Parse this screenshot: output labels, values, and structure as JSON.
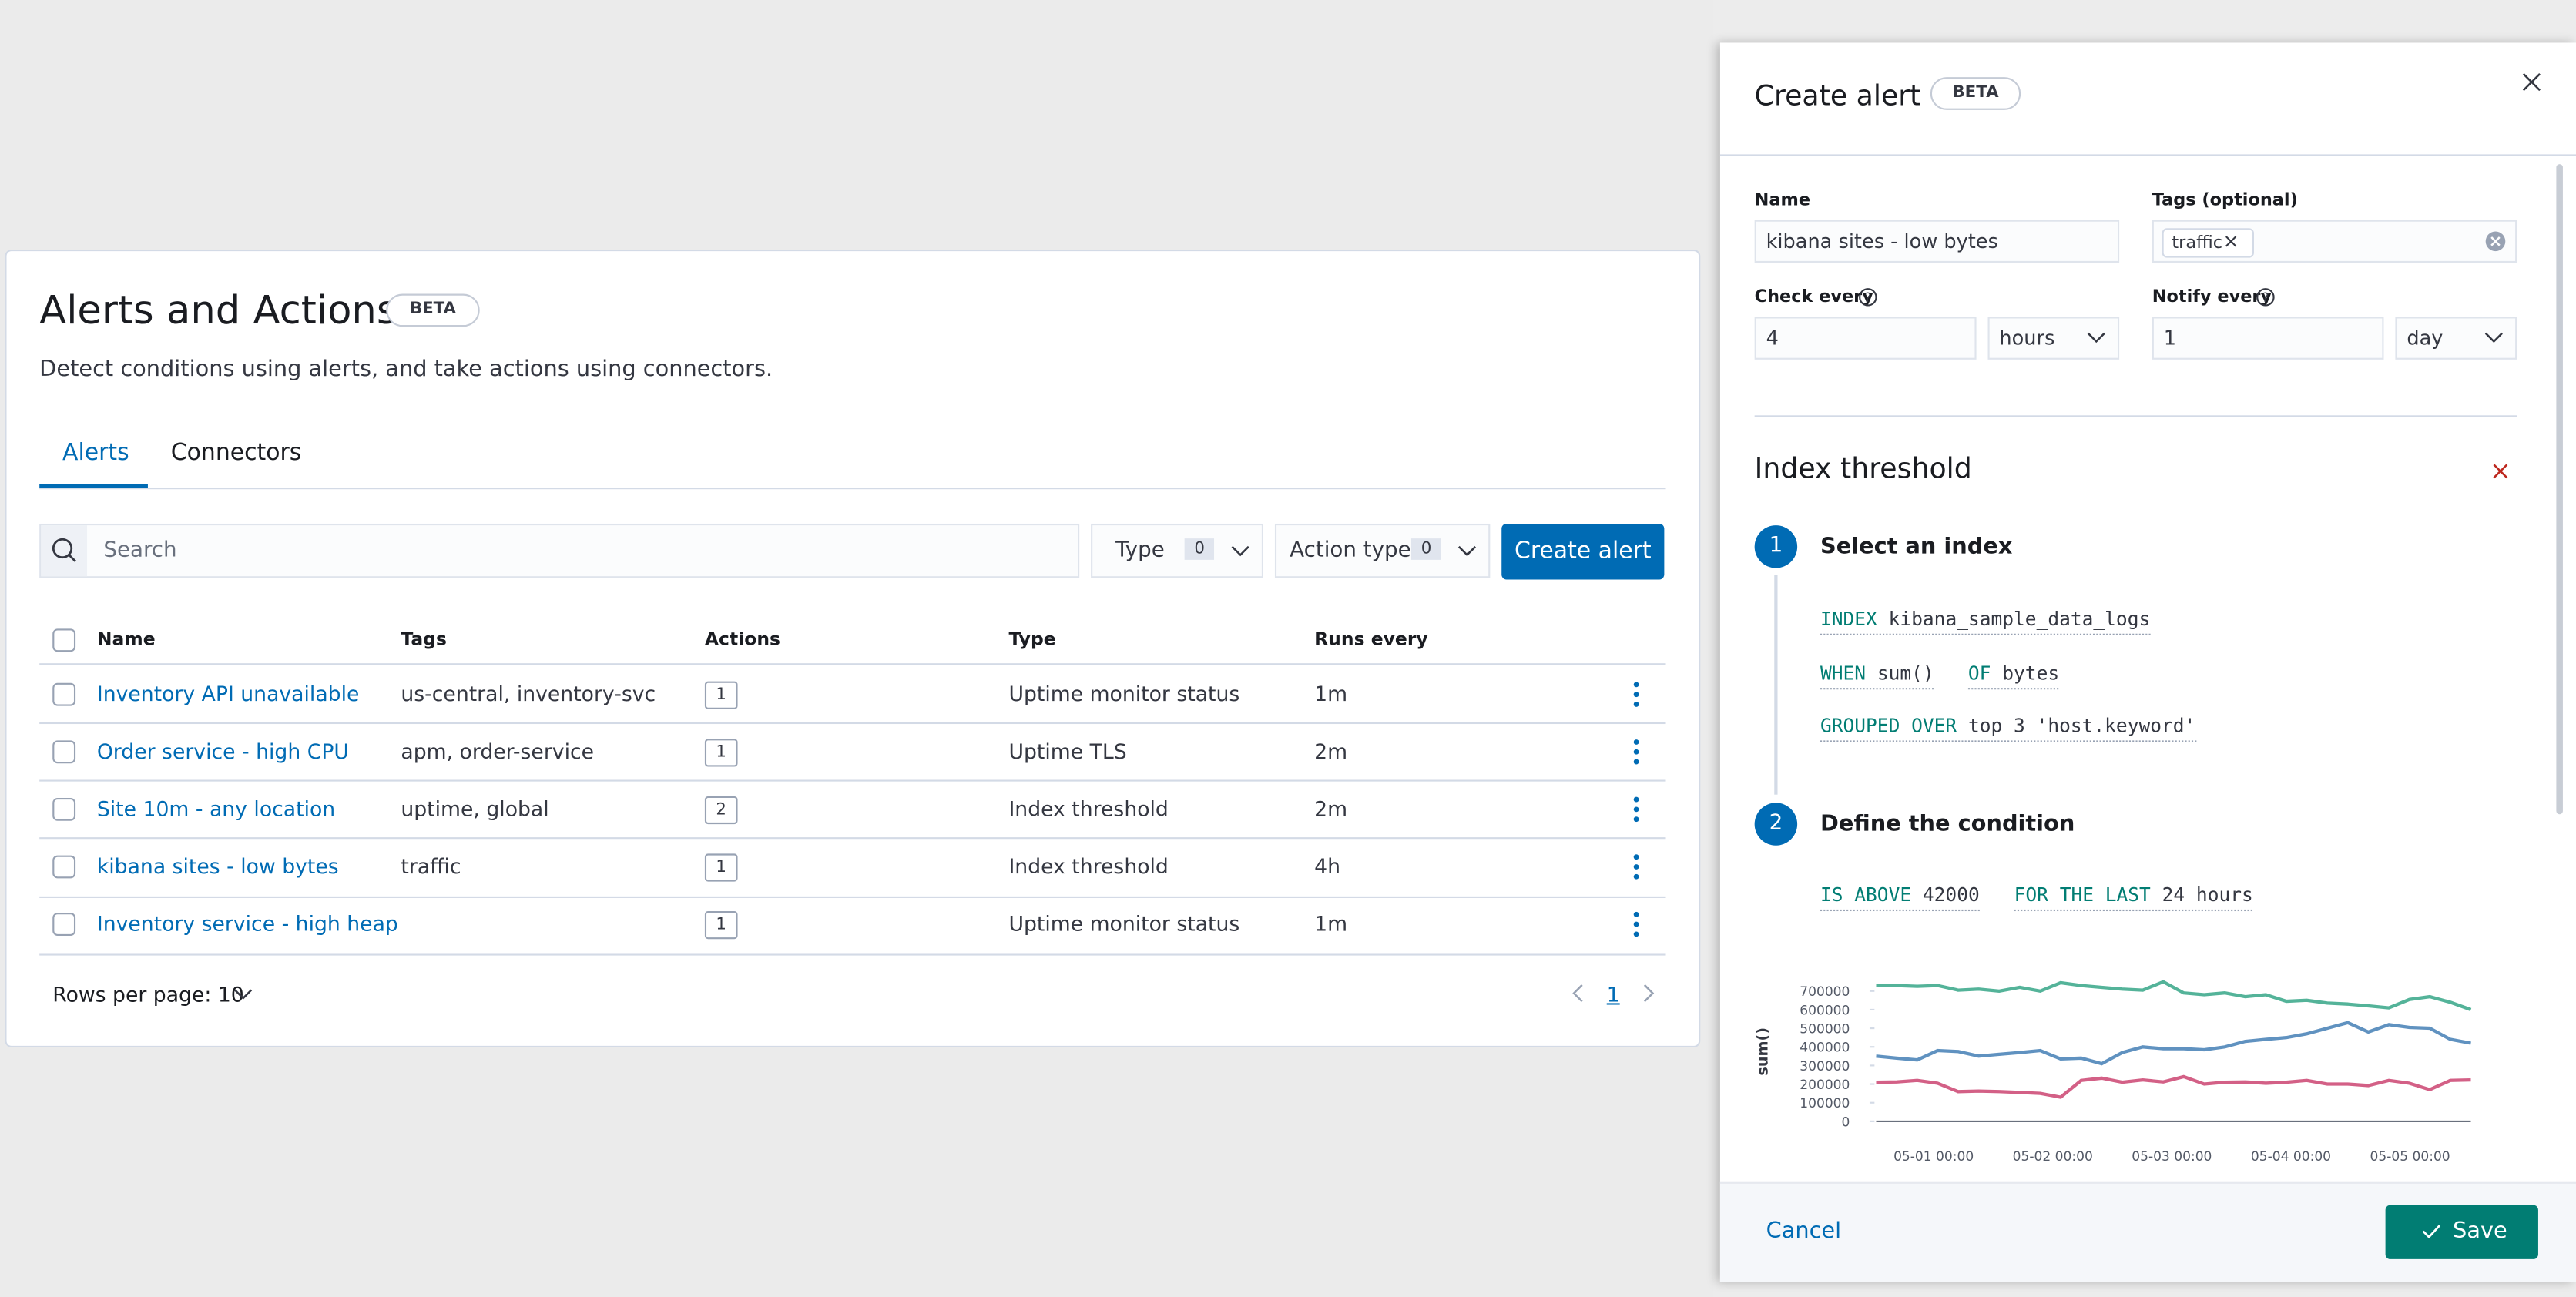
{
  "page": {
    "title": "Alerts and Actions",
    "badge": "BETA",
    "description": "Detect conditions using alerts, and take actions using connectors.",
    "tabs": [
      "Alerts",
      "Connectors"
    ],
    "search_placeholder": "Search",
    "filters": [
      {
        "label": "Type",
        "count": 0
      },
      {
        "label": "Action type",
        "count": 0
      }
    ],
    "create_button": "Create alert",
    "table": {
      "columns": [
        "Name",
        "Tags",
        "Actions",
        "Type",
        "Runs every"
      ],
      "rows": [
        [
          "Inventory API unavailable",
          "us-central, inventory-svc",
          1,
          "Uptime monitor status",
          "1m"
        ],
        [
          "Order service - high CPU",
          "apm, order-service",
          1,
          "Uptime TLS",
          "2m"
        ],
        [
          "Site 10m - any location",
          "uptime, global",
          2,
          "Index threshold",
          "2m"
        ],
        [
          "kibana sites - low bytes",
          "traffic",
          1,
          "Index threshold",
          "4h"
        ],
        [
          "Inventory service - high heap",
          "",
          1,
          "Uptime monitor status",
          "1m"
        ]
      ]
    },
    "rows_per_page": "Rows per page: 10",
    "current_page": 1
  },
  "flyout": {
    "title": "Create alert",
    "badge": "BETA",
    "name_label": "Name",
    "name_value": "kibana sites - low bytes",
    "tags_label": "Tags (optional)",
    "tag": "traffic",
    "check_label": "Check every",
    "check_value": 4,
    "check_unit": "hours",
    "notify_label": "Notify every",
    "notify_value": 1,
    "notify_unit": "day",
    "section_title": "Index threshold",
    "step1": {
      "number": 1,
      "title": "Select an index",
      "index_kw": "INDEX",
      "index": "kibana_sample_data_logs",
      "when_kw": "WHEN",
      "when": "sum()",
      "of_kw": "OF",
      "of": "bytes",
      "group_kw": "GROUPED OVER",
      "group": "top 3 'host.keyword'"
    },
    "step2": {
      "number": 2,
      "title": "Define the condition",
      "above_kw": "IS ABOVE",
      "above": 42000,
      "for_kw": "FOR THE LAST",
      "for": "24 hours"
    },
    "chart": {
      "type": "line",
      "y_label": "sum()",
      "ylim": [
        0,
        750000
      ],
      "yticks": [
        0,
        100000,
        200000,
        300000,
        400000,
        500000,
        600000,
        700000
      ],
      "xtick_labels": [
        "05-01 00:00",
        "05-02 00:00",
        "05-03 00:00",
        "05-04 00:00",
        "05-05 00:00"
      ],
      "series": [
        {
          "color": "#54b399",
          "values": [
            730000,
            730000,
            725000,
            730000,
            705000,
            710000,
            700000,
            720000,
            700000,
            745000,
            730000,
            720000,
            710000,
            705000,
            750000,
            690000,
            680000,
            690000,
            670000,
            680000,
            645000,
            650000,
            635000,
            630000,
            620000,
            610000,
            655000,
            670000,
            640000,
            600000
          ]
        },
        {
          "color": "#6092c0",
          "values": [
            350000,
            340000,
            330000,
            380000,
            375000,
            350000,
            360000,
            370000,
            380000,
            335000,
            340000,
            310000,
            370000,
            400000,
            390000,
            390000,
            385000,
            400000,
            430000,
            440000,
            450000,
            470000,
            500000,
            530000,
            480000,
            520000,
            505000,
            500000,
            440000,
            420000
          ]
        },
        {
          "color": "#d36086",
          "values": [
            210000,
            212000,
            220000,
            205000,
            160000,
            162000,
            160000,
            155000,
            150000,
            130000,
            220000,
            232000,
            210000,
            222000,
            212000,
            240000,
            200000,
            210000,
            212000,
            205000,
            210000,
            220000,
            200000,
            200000,
            192000,
            220000,
            205000,
            170000,
            220000,
            222000
          ]
        }
      ]
    },
    "cancel": "Cancel",
    "save": "Save"
  }
}
